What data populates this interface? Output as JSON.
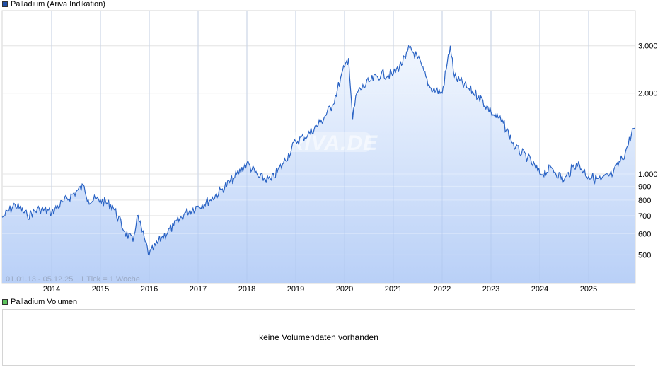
{
  "price_panel": {
    "legend_label": "Palladium (Ariva Indikation)",
    "legend_color": "#1f4fa8",
    "range_label": "01.01.13 - 05.12.25",
    "tick_label": "1 Tick = 1 Woche",
    "watermark": "ARIVA.DE"
  },
  "volume_panel": {
    "legend_label": "Palladium Volumen",
    "legend_color": "#5cc45c",
    "empty_message": "keine Volumendaten vorhanden"
  },
  "colors": {
    "line": "#2a63c4",
    "fill_top": "#eef4fd",
    "fill_bottom": "#bcd3f7",
    "grid": "#d9d9d9"
  },
  "chart_data": {
    "type": "area",
    "title": "Palladium (Ariva Indikation)",
    "subtitle": "01.01.13 - 05.12.25, 1 Tick = 1 Woche",
    "xlabel": "",
    "ylabel": "",
    "y_scale": "log",
    "ylim": [
      380,
      3900
    ],
    "grid": true,
    "legend_position": "top-left",
    "x_ticks": [
      "2014",
      "2015",
      "2016",
      "2017",
      "2018",
      "2019",
      "2020",
      "2021",
      "2022",
      "2023",
      "2024",
      "2025"
    ],
    "y_ticks": [
      "3.000",
      "2.000",
      "1.000",
      "900",
      "800",
      "700",
      "600",
      "500"
    ],
    "series": [
      {
        "name": "Palladium",
        "x": [
          "2013-01",
          "2013-04",
          "2013-07",
          "2013-10",
          "2014-01",
          "2014-04",
          "2014-07",
          "2014-09",
          "2014-10",
          "2015-01",
          "2015-04",
          "2015-07",
          "2015-09",
          "2015-10",
          "2015-12",
          "2016-01",
          "2016-04",
          "2016-07",
          "2016-10",
          "2017-01",
          "2017-04",
          "2017-07",
          "2017-10",
          "2018-01",
          "2018-04",
          "2018-07",
          "2018-10",
          "2019-01",
          "2019-04",
          "2019-07",
          "2019-10",
          "2020-01",
          "2020-02",
          "2020-03",
          "2020-04",
          "2020-07",
          "2020-10",
          "2021-01",
          "2021-04",
          "2021-05",
          "2021-07",
          "2021-10",
          "2022-01",
          "2022-03",
          "2022-04",
          "2022-07",
          "2022-10",
          "2023-01",
          "2023-04",
          "2023-07",
          "2023-10",
          "2024-01",
          "2024-04",
          "2024-07",
          "2024-10",
          "2025-01",
          "2025-04",
          "2025-07",
          "2025-10",
          "2025-12"
        ],
        "values": [
          690,
          770,
          700,
          740,
          720,
          790,
          860,
          900,
          800,
          800,
          760,
          610,
          560,
          700,
          560,
          500,
          580,
          640,
          720,
          760,
          800,
          880,
          970,
          1100,
          970,
          950,
          1100,
          1320,
          1400,
          1550,
          1800,
          2500,
          2700,
          1600,
          2000,
          2200,
          2350,
          2350,
          2700,
          2950,
          2700,
          2100,
          2000,
          3000,
          2300,
          2100,
          1950,
          1700,
          1550,
          1250,
          1150,
          1000,
          1050,
          950,
          1100,
          980,
          950,
          1000,
          1200,
          1480
        ]
      }
    ]
  }
}
